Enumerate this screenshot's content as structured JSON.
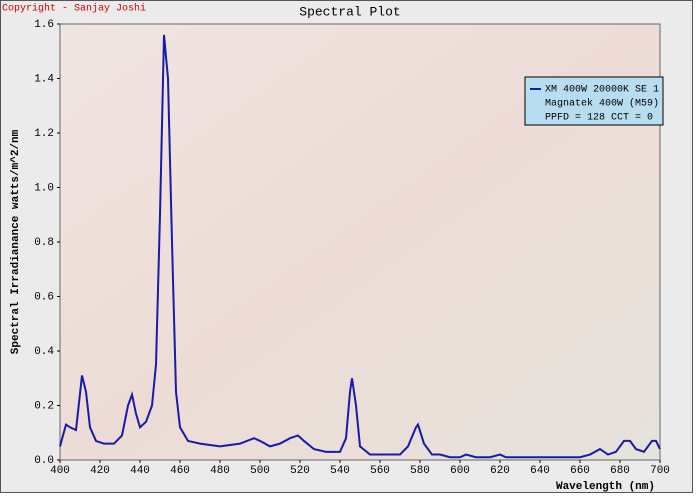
{
  "chart_data": {
    "type": "line",
    "copyright": "Copyright - Sanjay Joshi",
    "title": "Spectral Plot",
    "x_label": "Wavelength (nm)",
    "y_label": "Spectral Irradianance watts/m^2/nm",
    "x": [
      400,
      403,
      405,
      408,
      411,
      413,
      415,
      418,
      422,
      427,
      431,
      434,
      436,
      438,
      440,
      443,
      446,
      448,
      450,
      452,
      454,
      456,
      458,
      460,
      464,
      470,
      480,
      490,
      497,
      500,
      505,
      510,
      515,
      519,
      522,
      527,
      533,
      540,
      543,
      545,
      546,
      548,
      550,
      555,
      560,
      565,
      570,
      574,
      578,
      579,
      582,
      586,
      590,
      595,
      600,
      603,
      608,
      615,
      620,
      623,
      630,
      640,
      650,
      660,
      665,
      670,
      674,
      678,
      682,
      685,
      688,
      692,
      696,
      698,
      700
    ],
    "series": [
      {
        "name": "XM 400W 20000K SE 1",
        "color": "#1a1aa8",
        "values": [
          0.05,
          0.13,
          0.12,
          0.11,
          0.31,
          0.25,
          0.12,
          0.07,
          0.06,
          0.06,
          0.09,
          0.2,
          0.24,
          0.17,
          0.12,
          0.14,
          0.2,
          0.35,
          0.9,
          1.56,
          1.4,
          0.8,
          0.25,
          0.12,
          0.07,
          0.06,
          0.05,
          0.06,
          0.08,
          0.07,
          0.05,
          0.06,
          0.08,
          0.09,
          0.07,
          0.04,
          0.03,
          0.03,
          0.08,
          0.25,
          0.3,
          0.2,
          0.05,
          0.02,
          0.02,
          0.02,
          0.02,
          0.05,
          0.12,
          0.13,
          0.06,
          0.02,
          0.02,
          0.01,
          0.01,
          0.02,
          0.01,
          0.01,
          0.02,
          0.01,
          0.01,
          0.01,
          0.01,
          0.01,
          0.02,
          0.04,
          0.02,
          0.03,
          0.07,
          0.07,
          0.04,
          0.03,
          0.07,
          0.07,
          0.04
        ]
      }
    ],
    "legend_notes": [
      "Magnatek 400W (M59)",
      "PPFD = 128  CCT = 0"
    ],
    "legend_position": "upper right",
    "xlim": [
      400,
      700
    ],
    "xticks": [
      400,
      420,
      440,
      460,
      480,
      500,
      520,
      540,
      560,
      580,
      600,
      620,
      640,
      660,
      680,
      700
    ],
    "ylim": [
      0,
      1.6
    ],
    "yticks": [
      {
        "value": 0,
        "label": "0.0"
      },
      0.2,
      0.4,
      0.6,
      0.8,
      {
        "value": 1,
        "label": "1.0"
      },
      1.2,
      1.4,
      1.6
    ],
    "grid": false
  }
}
